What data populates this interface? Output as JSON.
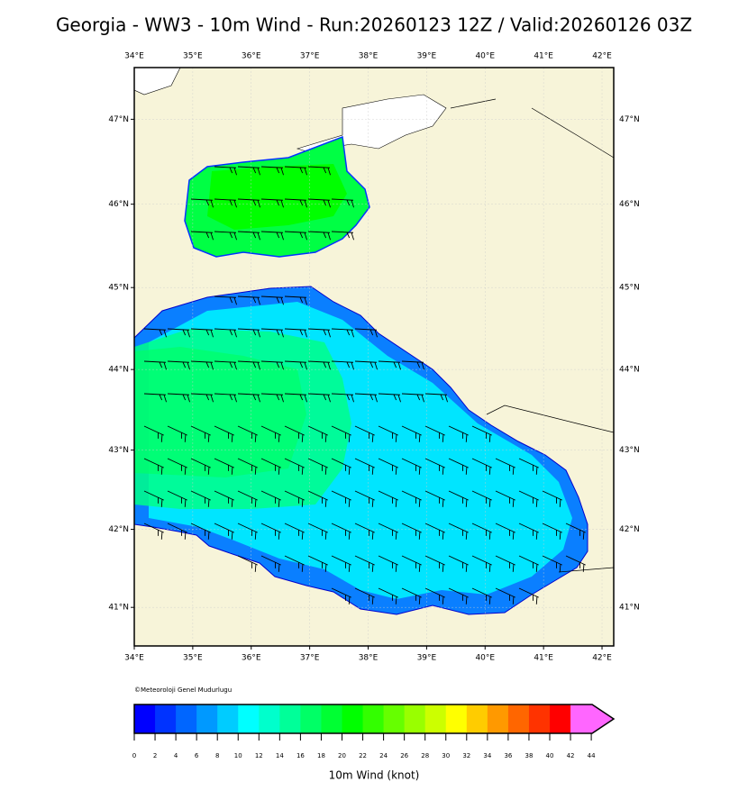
{
  "title": "Georgia - WW3 - 10m Wind - Run:20260123 12Z / Valid:20260126 03Z",
  "map": {
    "xlim": [
      34,
      42.2
    ],
    "ylim": [
      40.5,
      47.6
    ],
    "xticks": [
      {
        "value": 34,
        "label": "34°E"
      },
      {
        "value": 35,
        "label": "35°E"
      },
      {
        "value": 36,
        "label": "36°E"
      },
      {
        "value": 37,
        "label": "37°E"
      },
      {
        "value": 38,
        "label": "38°E"
      },
      {
        "value": 39,
        "label": "39°E"
      },
      {
        "value": 40,
        "label": "40°E"
      },
      {
        "value": 41,
        "label": "41°E"
      },
      {
        "value": 42,
        "label": "42°E"
      }
    ],
    "yticks": [
      {
        "value": 41,
        "label": "41°N"
      },
      {
        "value": 42,
        "label": "42°N"
      },
      {
        "value": 43,
        "label": "43°N"
      },
      {
        "value": 44,
        "label": "44°N"
      },
      {
        "value": 45,
        "label": "45°N"
      },
      {
        "value": 46,
        "label": "46°N"
      },
      {
        "value": 47,
        "label": "47°N"
      }
    ],
    "grid": true,
    "credit": "©Meteoroloji Genel Mudurlugu"
  },
  "colorbar": {
    "label": "10m Wind (knot)",
    "ticks": [
      0,
      2,
      4,
      6,
      8,
      10,
      12,
      14,
      16,
      18,
      20,
      22,
      24,
      26,
      28,
      30,
      32,
      34,
      36,
      38,
      40,
      42,
      44
    ],
    "colors": [
      "#0000ff",
      "#0033ff",
      "#0066ff",
      "#0099ff",
      "#00ccff",
      "#00ffff",
      "#00ffcc",
      "#00ff99",
      "#00ff66",
      "#00ff33",
      "#00ff00",
      "#33ff00",
      "#66ff00",
      "#99ff00",
      "#ccff00",
      "#ffff00",
      "#ffcc00",
      "#ff9900",
      "#ff6600",
      "#ff3300",
      "#ff0000",
      "#ff66ff"
    ]
  }
}
